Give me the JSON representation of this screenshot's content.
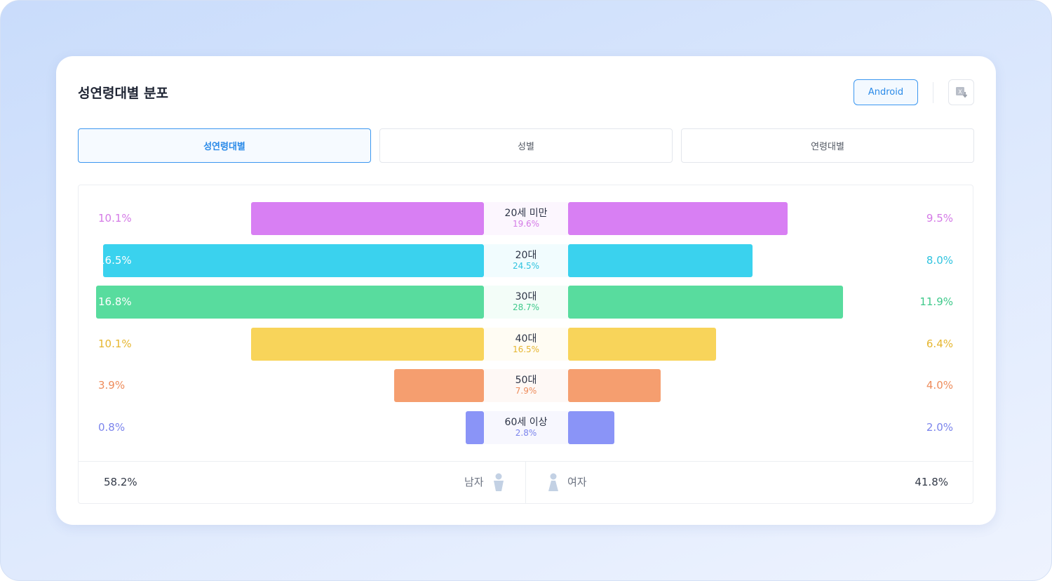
{
  "header": {
    "title": "성연령대별 분포",
    "platform_button": "Android",
    "export_icon": "excel-download-icon"
  },
  "tabs": [
    {
      "label": "성연령대별",
      "active": true
    },
    {
      "label": "성별",
      "active": false
    },
    {
      "label": "연령대별",
      "active": false
    }
  ],
  "chart_data": {
    "type": "bar",
    "subtype": "population-pyramid",
    "categories": [
      "20세 미만",
      "20대",
      "30대",
      "40대",
      "50대",
      "60세 이상"
    ],
    "category_totals": [
      "19.6%",
      "24.5%",
      "28.7%",
      "16.5%",
      "7.9%",
      "2.8%"
    ],
    "series": [
      {
        "name": "남자",
        "values": [
          10.1,
          16.5,
          16.8,
          10.1,
          3.9,
          0.8
        ],
        "side": "left"
      },
      {
        "name": "여자",
        "values": [
          9.5,
          8.0,
          11.9,
          6.4,
          4.0,
          2.0
        ],
        "side": "right"
      }
    ],
    "colors": [
      "#d87ff3",
      "#3ad2ee",
      "#58dc9e",
      "#f8d45a",
      "#f59e6f",
      "#8a94f7"
    ],
    "text_colors": [
      "#d47ae6",
      "#2fc3df",
      "#3fc98b",
      "#e6b630",
      "#ee8c5b",
      "#7b84ec"
    ],
    "unit": "%"
  },
  "footer": {
    "male_total": "58.2%",
    "male_label": "남자",
    "female_label": "여자",
    "female_total": "41.8%"
  }
}
